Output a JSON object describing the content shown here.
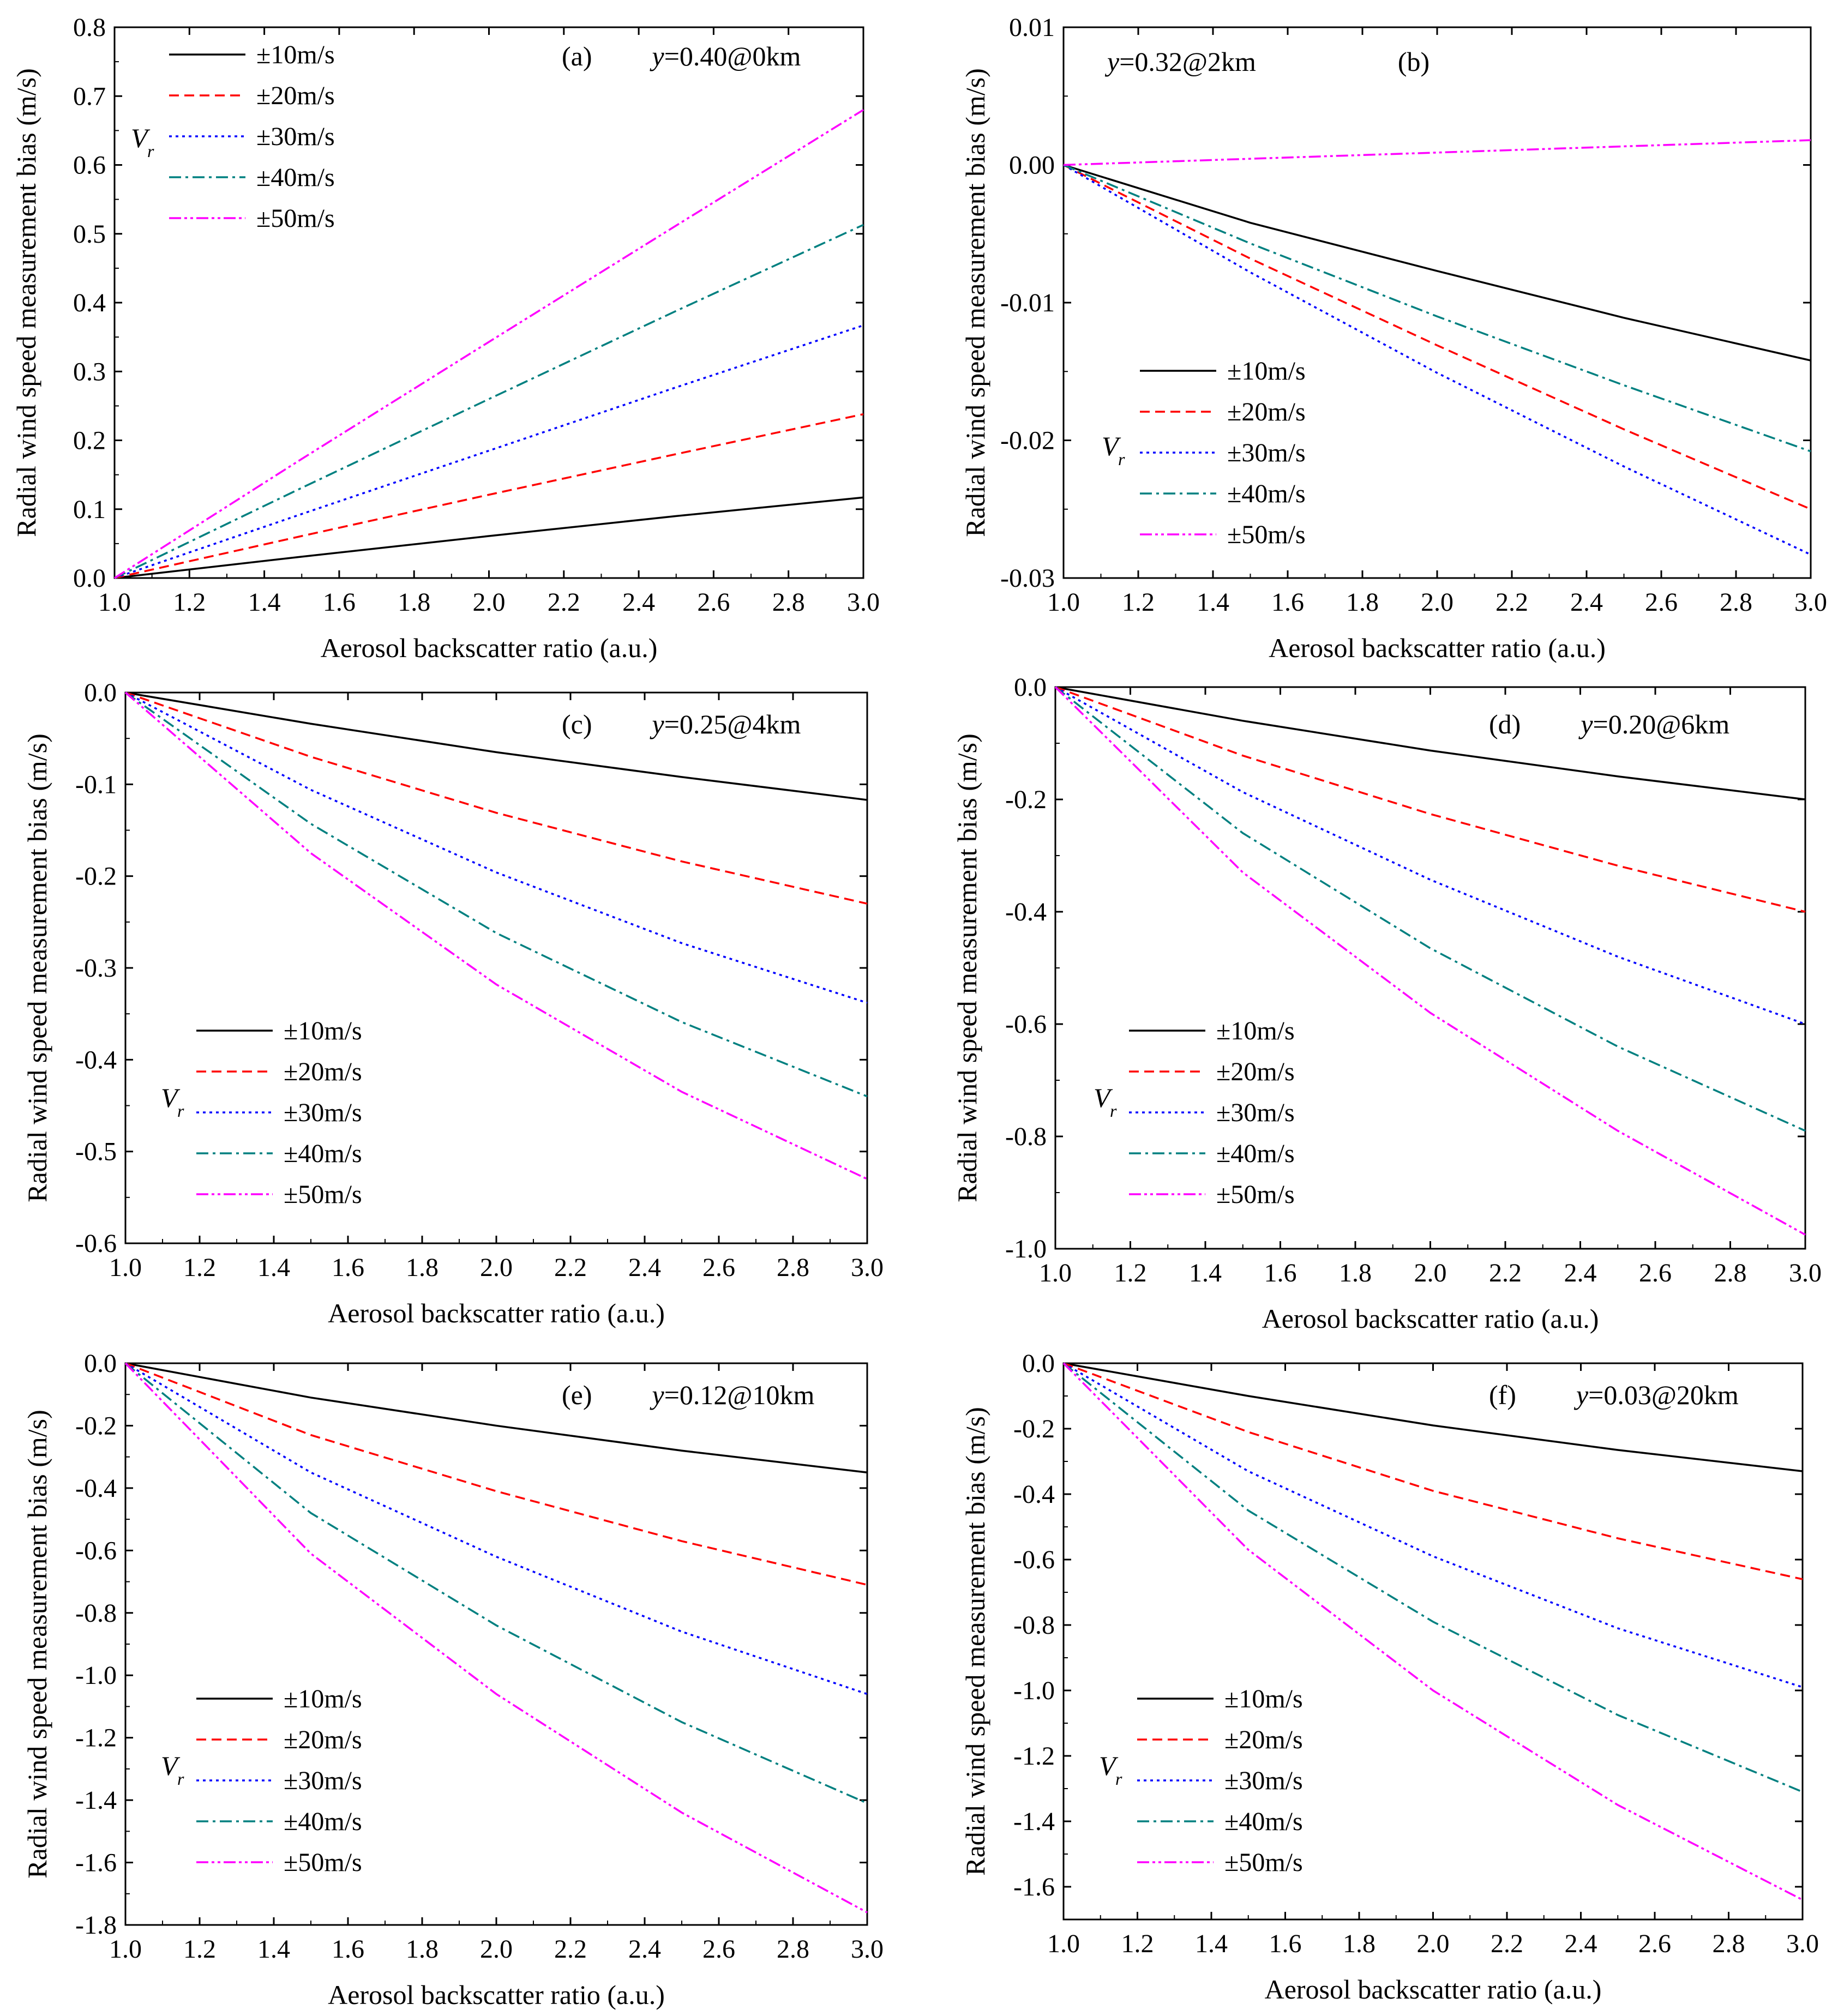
{
  "chart_data": [
    {
      "type": "line",
      "panel": "(a)",
      "annotation": {
        "var": "y",
        "text": "=0.40@0km"
      },
      "xlabel": "Aerosol backscatter ratio (a.u.)",
      "ylabel": "Radial wind speed measurement bias (m/s)",
      "xlim": [
        1.0,
        3.0
      ],
      "ylim": [
        0.0,
        0.8
      ],
      "xticks": [
        1.0,
        1.2,
        1.4,
        1.6,
        1.8,
        2.0,
        2.2,
        2.4,
        2.6,
        2.8,
        3.0
      ],
      "xtick_labels": [
        "1.0",
        "1.2",
        "1.4",
        "1.6",
        "1.8",
        "2.0",
        "2.2",
        "2.4",
        "2.6",
        "2.8",
        "3.0"
      ],
      "yticks": [
        0.0,
        0.1,
        0.2,
        0.3,
        0.4,
        0.5,
        0.6,
        0.7,
        0.8
      ],
      "ytick_labels": [
        "0.0",
        "0.1",
        "0.2",
        "0.3",
        "0.4",
        "0.5",
        "0.6",
        "0.7",
        "0.8"
      ],
      "legend_title": {
        "main": "V",
        "sub": "r"
      },
      "legend_position": "top-left",
      "x": [
        1.0,
        1.5,
        2.0,
        2.5,
        3.0
      ],
      "series": [
        {
          "name": "±10m/s",
          "values": [
            0.0,
            0.031,
            0.061,
            0.09,
            0.117
          ]
        },
        {
          "name": "±20m/s",
          "values": [
            0.0,
            0.061,
            0.121,
            0.18,
            0.238
          ]
        },
        {
          "name": "±30m/s",
          "values": [
            0.0,
            0.093,
            0.185,
            0.277,
            0.367
          ]
        },
        {
          "name": "±40m/s",
          "values": [
            0.0,
            0.131,
            0.26,
            0.388,
            0.513
          ]
        },
        {
          "name": "±50m/s",
          "values": [
            0.0,
            0.173,
            0.343,
            0.512,
            0.68
          ]
        }
      ]
    },
    {
      "type": "line",
      "panel": "(b)",
      "annotation": {
        "var": "y",
        "text": "=0.32@2km"
      },
      "xlabel": "Aerosol backscatter ratio (a.u.)",
      "ylabel": "Radial wind speed measurement bias (m/s)",
      "xlim": [
        1.0,
        3.0
      ],
      "ylim": [
        -0.03,
        0.01
      ],
      "xticks": [
        1.0,
        1.2,
        1.4,
        1.6,
        1.8,
        2.0,
        2.2,
        2.4,
        2.6,
        2.8,
        3.0
      ],
      "xtick_labels": [
        "1.0",
        "1.2",
        "1.4",
        "1.6",
        "1.8",
        "2.0",
        "2.2",
        "2.4",
        "2.6",
        "2.8",
        "3.0"
      ],
      "yticks": [
        -0.03,
        -0.02,
        -0.01,
        0.0,
        0.01
      ],
      "ytick_labels": [
        "-0.03",
        "-0.02",
        "-0.01",
        "0.00",
        "0.01"
      ],
      "legend_title": {
        "main": "V",
        "sub": "r"
      },
      "legend_position": "bottom-left",
      "x": [
        1.0,
        1.5,
        2.0,
        2.5,
        3.0
      ],
      "series": [
        {
          "name": "±10m/s",
          "values": [
            0.0,
            -0.0042,
            -0.0077,
            -0.0111,
            -0.0142
          ]
        },
        {
          "name": "±20m/s",
          "values": [
            0.0,
            -0.0068,
            -0.0131,
            -0.0192,
            -0.025
          ]
        },
        {
          "name": "±30m/s",
          "values": [
            0.0,
            -0.0078,
            -0.0151,
            -0.0219,
            -0.0283
          ]
        },
        {
          "name": "±40m/s",
          "values": [
            0.0,
            -0.0057,
            -0.011,
            -0.016,
            -0.0208
          ]
        },
        {
          "name": "±50m/s",
          "values": [
            0.0,
            0.00045,
            0.0009,
            0.00135,
            0.0018
          ]
        }
      ]
    },
    {
      "type": "line",
      "panel": "(c)",
      "annotation": {
        "var": "y",
        "text": "=0.25@4km"
      },
      "xlabel": "Aerosol backscatter ratio (a.u.)",
      "ylabel": "Radial wind speed measurement bias (m/s)",
      "xlim": [
        1.0,
        3.0
      ],
      "ylim": [
        -0.6,
        0.0
      ],
      "xticks": [
        1.0,
        1.2,
        1.4,
        1.6,
        1.8,
        2.0,
        2.2,
        2.4,
        2.6,
        2.8,
        3.0
      ],
      "xtick_labels": [
        "1.0",
        "1.2",
        "1.4",
        "1.6",
        "1.8",
        "2.0",
        "2.2",
        "2.4",
        "2.6",
        "2.8",
        "3.0"
      ],
      "yticks": [
        -0.6,
        -0.5,
        -0.4,
        -0.3,
        -0.2,
        -0.1,
        0.0
      ],
      "ytick_labels": [
        "-0.6",
        "-0.5",
        "-0.4",
        "-0.3",
        "-0.2",
        "-0.1",
        "0.0"
      ],
      "legend_title": {
        "main": "V",
        "sub": "r"
      },
      "legend_position": "bottom-left",
      "x": [
        1.0,
        1.5,
        2.0,
        2.5,
        3.0
      ],
      "series": [
        {
          "name": "±10m/s",
          "values": [
            0.0,
            -0.034,
            -0.065,
            -0.092,
            -0.117
          ]
        },
        {
          "name": "±20m/s",
          "values": [
            0.0,
            -0.07,
            -0.131,
            -0.184,
            -0.23
          ]
        },
        {
          "name": "±30m/s",
          "values": [
            0.0,
            -0.106,
            -0.196,
            -0.273,
            -0.338
          ]
        },
        {
          "name": "±40m/s",
          "values": [
            0.0,
            -0.143,
            -0.262,
            -0.359,
            -0.44
          ]
        },
        {
          "name": "±50m/s",
          "values": [
            0.0,
            -0.175,
            -0.318,
            -0.435,
            -0.53
          ]
        }
      ]
    },
    {
      "type": "line",
      "panel": "(d)",
      "annotation": {
        "var": "y",
        "text": "=0.20@6km"
      },
      "xlabel": "Aerosol backscatter ratio (a.u.)",
      "ylabel": "Radial wind speed measurement bias (m/s)",
      "xlim": [
        1.0,
        3.0
      ],
      "ylim": [
        -1.0,
        0.0
      ],
      "xticks": [
        1.0,
        1.2,
        1.4,
        1.6,
        1.8,
        2.0,
        2.2,
        2.4,
        2.6,
        2.8,
        3.0
      ],
      "xtick_labels": [
        "1.0",
        "1.2",
        "1.4",
        "1.6",
        "1.8",
        "2.0",
        "2.2",
        "2.4",
        "2.6",
        "2.8",
        "3.0"
      ],
      "yticks": [
        -1.0,
        -0.8,
        -0.6,
        -0.4,
        -0.2,
        0.0
      ],
      "ytick_labels": [
        "-1.0",
        "-0.8",
        "-0.6",
        "-0.4",
        "-0.2",
        "0.0"
      ],
      "legend_title": {
        "main": "V",
        "sub": "r"
      },
      "legend_position": "bottom-left",
      "x": [
        1.0,
        1.5,
        2.0,
        2.5,
        3.0
      ],
      "series": [
        {
          "name": "±10m/s",
          "values": [
            0.0,
            -0.06,
            -0.113,
            -0.159,
            -0.2
          ]
        },
        {
          "name": "±20m/s",
          "values": [
            0.0,
            -0.122,
            -0.226,
            -0.318,
            -0.4
          ]
        },
        {
          "name": "±30m/s",
          "values": [
            0.0,
            -0.187,
            -0.343,
            -0.48,
            -0.6
          ]
        },
        {
          "name": "±40m/s",
          "values": [
            0.0,
            -0.26,
            -0.465,
            -0.64,
            -0.79
          ]
        },
        {
          "name": "±50m/s",
          "values": [
            0.0,
            -0.33,
            -0.58,
            -0.79,
            -0.975
          ]
        }
      ]
    },
    {
      "type": "line",
      "panel": "(e)",
      "annotation": {
        "var": "y",
        "text": "=0.12@10km"
      },
      "xlabel": "Aerosol backscatter ratio (a.u.)",
      "ylabel": "Radial wind speed measurement bias (m/s)",
      "xlim": [
        1.0,
        3.0
      ],
      "ylim": [
        -1.8,
        0.0
      ],
      "xticks": [
        1.0,
        1.2,
        1.4,
        1.6,
        1.8,
        2.0,
        2.2,
        2.4,
        2.6,
        2.8,
        3.0
      ],
      "xtick_labels": [
        "1.0",
        "1.2",
        "1.4",
        "1.6",
        "1.8",
        "2.0",
        "2.2",
        "2.4",
        "2.6",
        "2.8",
        "3.0"
      ],
      "yticks": [
        -1.8,
        -1.6,
        -1.4,
        -1.2,
        -1.0,
        -0.8,
        -0.6,
        -0.4,
        -0.2,
        0.0
      ],
      "ytick_labels": [
        "-1.8",
        "-1.6",
        "-1.4",
        "-1.2",
        "-1.0",
        "-0.8",
        "-0.6",
        "-0.4",
        "-0.2",
        "0.0"
      ],
      "legend_title": {
        "main": "V",
        "sub": "r"
      },
      "legend_position": "bottom-left",
      "x": [
        1.0,
        1.5,
        2.0,
        2.5,
        3.0
      ],
      "series": [
        {
          "name": "±10m/s",
          "values": [
            0.0,
            -0.11,
            -0.2,
            -0.28,
            -0.35
          ]
        },
        {
          "name": "±20m/s",
          "values": [
            0.0,
            -0.23,
            -0.41,
            -0.57,
            -0.71
          ]
        },
        {
          "name": "±30m/s",
          "values": [
            0.0,
            -0.35,
            -0.62,
            -0.86,
            -1.06
          ]
        },
        {
          "name": "±40m/s",
          "values": [
            0.0,
            -0.48,
            -0.84,
            -1.15,
            -1.41
          ]
        },
        {
          "name": "±50m/s",
          "values": [
            0.0,
            -0.61,
            -1.06,
            -1.44,
            -1.76
          ]
        }
      ]
    },
    {
      "type": "line",
      "panel": "(f)",
      "annotation": {
        "var": "y",
        "text": "=0.03@20km"
      },
      "xlabel": "Aerosol backscatter ratio (a.u.)",
      "ylabel": "Radial wind speed measurement bias (m/s)",
      "xlim": [
        1.0,
        3.0
      ],
      "ylim": [
        -1.7,
        0.0
      ],
      "xticks": [
        1.0,
        1.2,
        1.4,
        1.6,
        1.8,
        2.0,
        2.2,
        2.4,
        2.6,
        2.8,
        3.0
      ],
      "xtick_labels": [
        "1.0",
        "1.2",
        "1.4",
        "1.6",
        "1.8",
        "2.0",
        "2.2",
        "2.4",
        "2.6",
        "2.8",
        "3.0"
      ],
      "yticks": [
        -1.6,
        -1.4,
        -1.2,
        -1.0,
        -0.8,
        -0.6,
        -0.4,
        -0.2,
        0.0
      ],
      "ytick_labels": [
        "-1.6",
        "-1.4",
        "-1.2",
        "-1.0",
        "-0.8",
        "-0.6",
        "-0.4",
        "-0.2",
        "0.0"
      ],
      "legend_title": {
        "main": "V",
        "sub": "r"
      },
      "legend_position": "bottom-left",
      "x": [
        1.0,
        1.5,
        2.0,
        2.5,
        3.0
      ],
      "series": [
        {
          "name": "±10m/s",
          "values": [
            0.0,
            -0.1,
            -0.19,
            -0.265,
            -0.33
          ]
        },
        {
          "name": "±20m/s",
          "values": [
            0.0,
            -0.21,
            -0.39,
            -0.535,
            -0.66
          ]
        },
        {
          "name": "±30m/s",
          "values": [
            0.0,
            -0.33,
            -0.59,
            -0.81,
            -0.99
          ]
        },
        {
          "name": "±40m/s",
          "values": [
            0.0,
            -0.45,
            -0.79,
            -1.075,
            -1.31
          ]
        },
        {
          "name": "±50m/s",
          "values": [
            0.0,
            -0.57,
            -1.0,
            -1.35,
            -1.64
          ]
        }
      ]
    }
  ],
  "series_styles": [
    {
      "color": "#000000",
      "dash": ""
    },
    {
      "color": "#ff0000",
      "dash": "18,10"
    },
    {
      "color": "#0000ff",
      "dash": "5,7"
    },
    {
      "color": "#008080",
      "dash": "22,8,5,8"
    },
    {
      "color": "#ff00ff",
      "dash": "22,6,5,6,5,6"
    }
  ]
}
